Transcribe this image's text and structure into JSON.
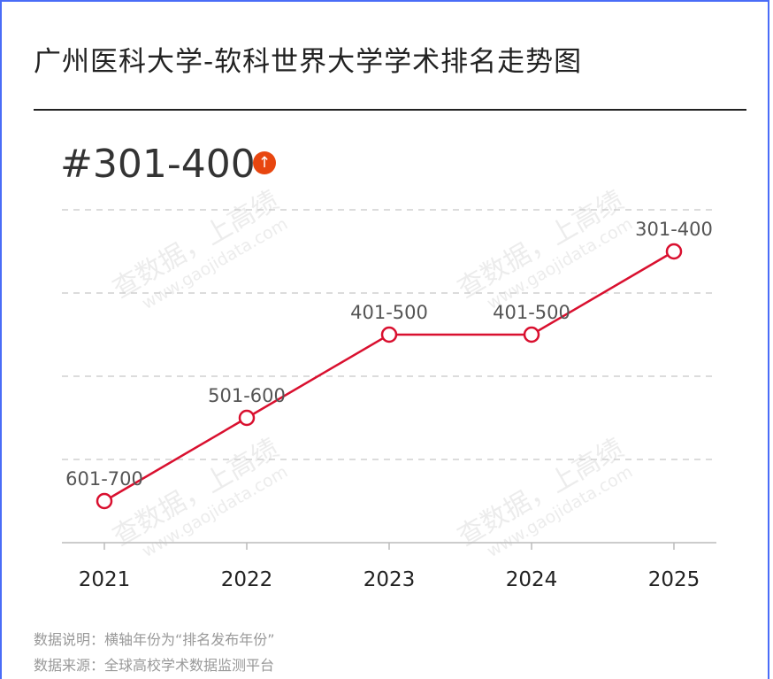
{
  "title": "广州医科大学-软科世界大学学术排名走势图",
  "current_rank": "#301-400",
  "trend_icon": "arrow-up-icon",
  "watermark": {
    "main": "查数据，上高绩",
    "url": "www.gaojidata.com"
  },
  "notes": {
    "line1": "数据说明：横轴年份为“排名发布年份”",
    "line2": "数据来源：全球高校学术数据监测平台"
  },
  "colors": {
    "line": "#d9102f",
    "badge": "#e8460f",
    "grid": "#c8c8c8"
  },
  "chart_data": {
    "type": "line",
    "categories": [
      "2021",
      "2022",
      "2023",
      "2024",
      "2025"
    ],
    "series": [
      {
        "labels": [
          "601-700",
          "501-600",
          "401-500",
          "401-500",
          "301-400"
        ],
        "values": [
          650,
          550,
          450,
          450,
          350
        ]
      }
    ],
    "y_reversed": true,
    "ylim": [
      300,
      700
    ],
    "grid": true,
    "title": "",
    "xlabel": "",
    "ylabel": ""
  }
}
